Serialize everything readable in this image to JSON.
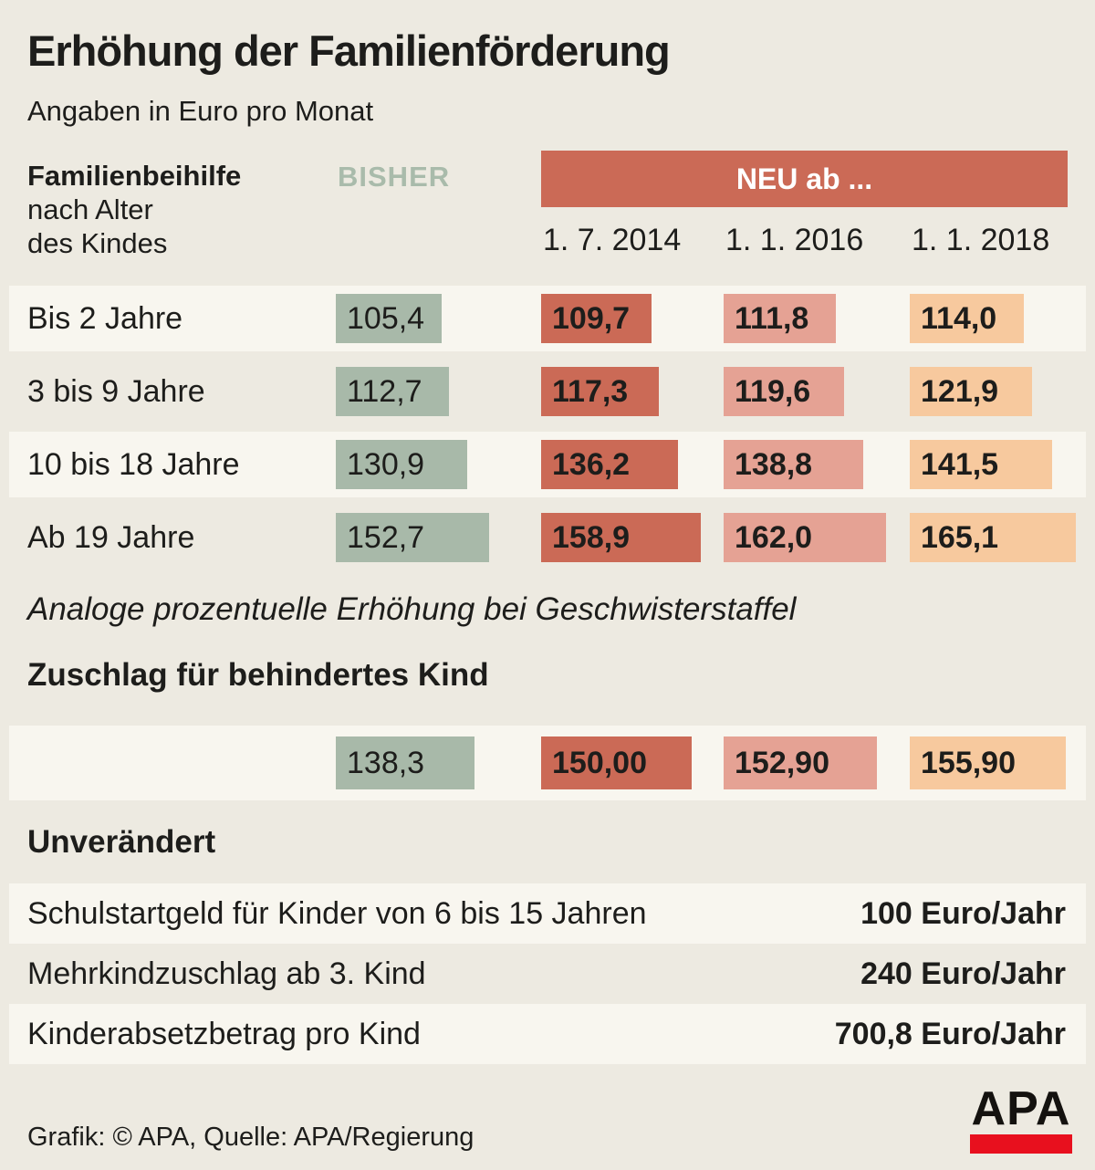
{
  "title": "Erhöhung der Familienförderung",
  "subtitle": "Angaben in Euro pro Monat",
  "table": {
    "left_header": {
      "line1": "Familienbeihilfe",
      "line2": "nach Alter",
      "line3": "des Kindes"
    },
    "bisher_label": "BISHER",
    "neu_label": "NEU ab ...",
    "dates": [
      "1. 7. 2014",
      "1. 1. 2016",
      "1. 1. 2018"
    ],
    "rows": [
      {
        "label": "Bis 2 Jahre",
        "bisher": "105,4",
        "neu1": "109,7",
        "neu2": "111,8",
        "neu3": "114,0"
      },
      {
        "label": "3 bis 9 Jahre",
        "bisher": "112,7",
        "neu1": "117,3",
        "neu2": "119,6",
        "neu3": "121,9"
      },
      {
        "label": "10 bis 18 Jahre",
        "bisher": "130,9",
        "neu1": "136,2",
        "neu2": "138,8",
        "neu3": "141,5"
      },
      {
        "label": "Ab 19 Jahre",
        "bisher": "152,7",
        "neu1": "158,9",
        "neu2": "162,0",
        "neu3": "165,1"
      }
    ]
  },
  "note": "Analoge prozentuelle Erhöhung bei Geschwisterstaffel",
  "zuschlag": {
    "heading": "Zuschlag für behindertes Kind",
    "bisher": "138,3",
    "neu1": "150,00",
    "neu2": "152,90",
    "neu3": "155,90"
  },
  "unveraendert": {
    "heading": "Unverändert",
    "rows": [
      {
        "label": "Schulstartgeld für Kinder von 6 bis 15 Jahren",
        "value": "100 Euro/Jahr"
      },
      {
        "label": "Mehrkindzuschlag ab 3. Kind",
        "value": "240 Euro/Jahr"
      },
      {
        "label": "Kinderabsetzbetrag pro Kind",
        "value": "700,8 Euro/Jahr"
      }
    ]
  },
  "footer": {
    "credit": "Grafik: © APA, Quelle: APA/Regierung",
    "logo_text": "APA"
  },
  "colors": {
    "background": "#edeae1",
    "stripe": "#f8f6ef",
    "bisher_box": "#a8b9a9",
    "bisher_text": "#a9bbab",
    "neu_2014": "#cb6a56",
    "neu_2016": "#e5a294",
    "neu_2018": "#f7c99e",
    "apa_red": "#e8101e",
    "text": "#1d1d1b"
  },
  "chart_data": {
    "type": "table",
    "title": "Erhöhung der Familienförderung",
    "unit": "Euro pro Monat",
    "columns": [
      "BISHER",
      "NEU ab 1. 7. 2014",
      "NEU ab 1. 1. 2016",
      "NEU ab 1. 1. 2018"
    ],
    "rows": [
      {
        "category": "Bis 2 Jahre",
        "values": [
          105.4,
          109.7,
          111.8,
          114.0
        ]
      },
      {
        "category": "3 bis 9 Jahre",
        "values": [
          112.7,
          117.3,
          119.6,
          121.9
        ]
      },
      {
        "category": "10 bis 18 Jahre",
        "values": [
          130.9,
          136.2,
          138.8,
          141.5
        ]
      },
      {
        "category": "Ab 19 Jahre",
        "values": [
          152.7,
          158.9,
          162.0,
          165.1
        ]
      },
      {
        "category": "Zuschlag für behindertes Kind",
        "values": [
          138.3,
          150.0,
          152.9,
          155.9
        ]
      }
    ],
    "note": "Analoge prozentuelle Erhöhung bei Geschwisterstaffel",
    "unchanged": [
      {
        "label": "Schulstartgeld für Kinder von 6 bis 15 Jahren",
        "value": "100 Euro/Jahr"
      },
      {
        "label": "Mehrkindzuschlag ab 3. Kind",
        "value": "240 Euro/Jahr"
      },
      {
        "label": "Kinderabsetzbetrag pro Kind",
        "value": "700,8 Euro/Jahr"
      }
    ],
    "layout": "bar widths proportional to values, ~1.1px per Euro"
  }
}
